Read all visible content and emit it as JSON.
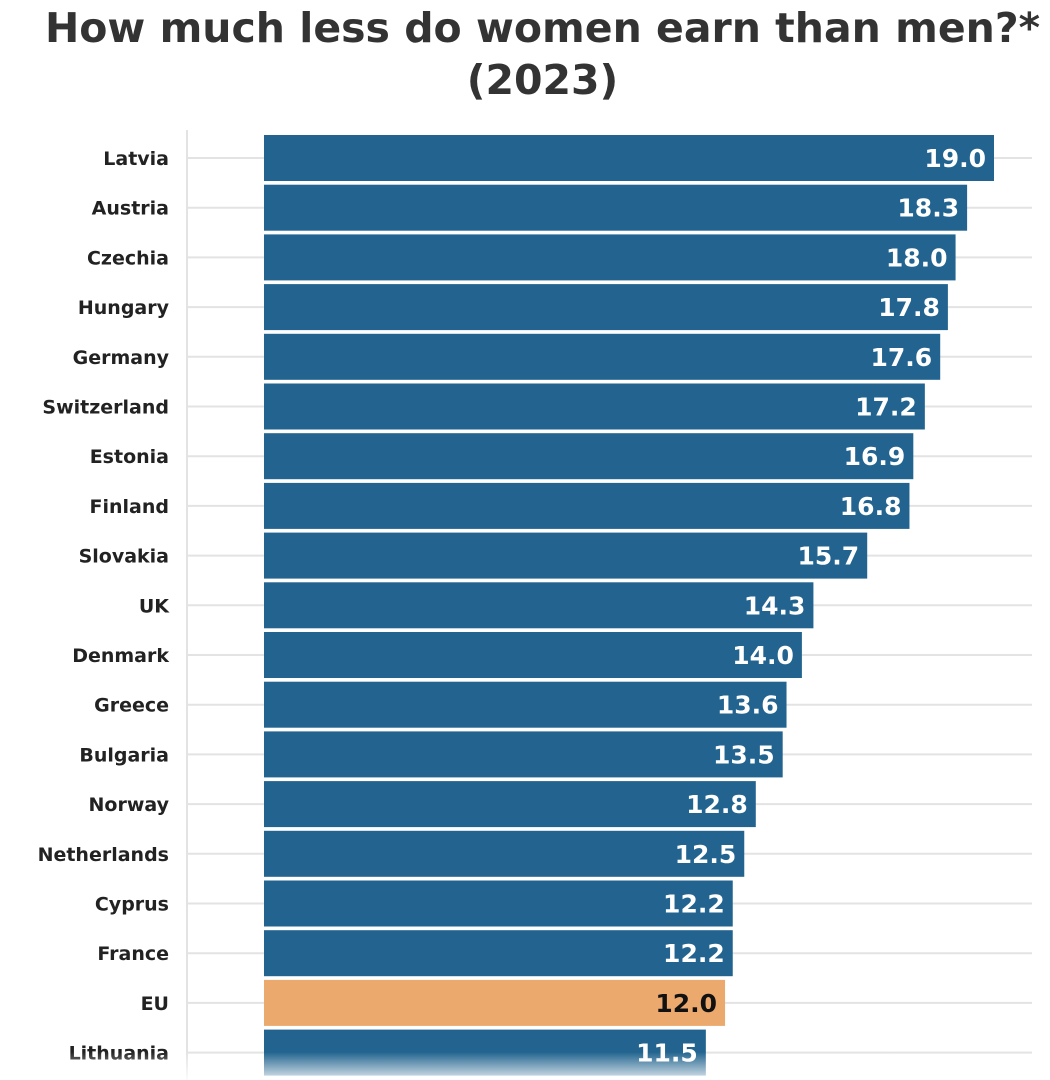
{
  "chart_data": {
    "type": "bar",
    "orientation": "horizontal",
    "title_line1": "How much less do women earn than men?*",
    "title_line2": "(2023)",
    "categories": [
      "Latvia",
      "Austria",
      "Czechia",
      "Hungary",
      "Germany",
      "Switzerland",
      "Estonia",
      "Finland",
      "Slovakia",
      "UK",
      "Denmark",
      "Greece",
      "Bulgaria",
      "Norway",
      "Netherlands",
      "Cyprus",
      "France",
      "EU",
      "Lithuania"
    ],
    "values": [
      19.0,
      18.3,
      18.0,
      17.8,
      17.6,
      17.2,
      16.9,
      16.8,
      15.7,
      14.3,
      14.0,
      13.6,
      13.5,
      12.8,
      12.5,
      12.2,
      12.2,
      12.0,
      11.5
    ],
    "value_labels": [
      "19.0",
      "18.3",
      "18.0",
      "17.8",
      "17.6",
      "17.2",
      "16.9",
      "16.8",
      "15.7",
      "14.3",
      "14.0",
      "13.6",
      "13.5",
      "12.8",
      "12.5",
      "12.2",
      "12.2",
      "12.0",
      "11.5"
    ],
    "highlight_category": "EU",
    "xlim": [
      0,
      19.0
    ],
    "grid": true,
    "colors": {
      "bar": "#22648f",
      "highlight": "#eba96e",
      "label_on_bar": "#ffffff",
      "label_on_highlight": "#111111",
      "category_text": "#222222",
      "grid": "#e3e3e3",
      "title": "#333333"
    }
  }
}
